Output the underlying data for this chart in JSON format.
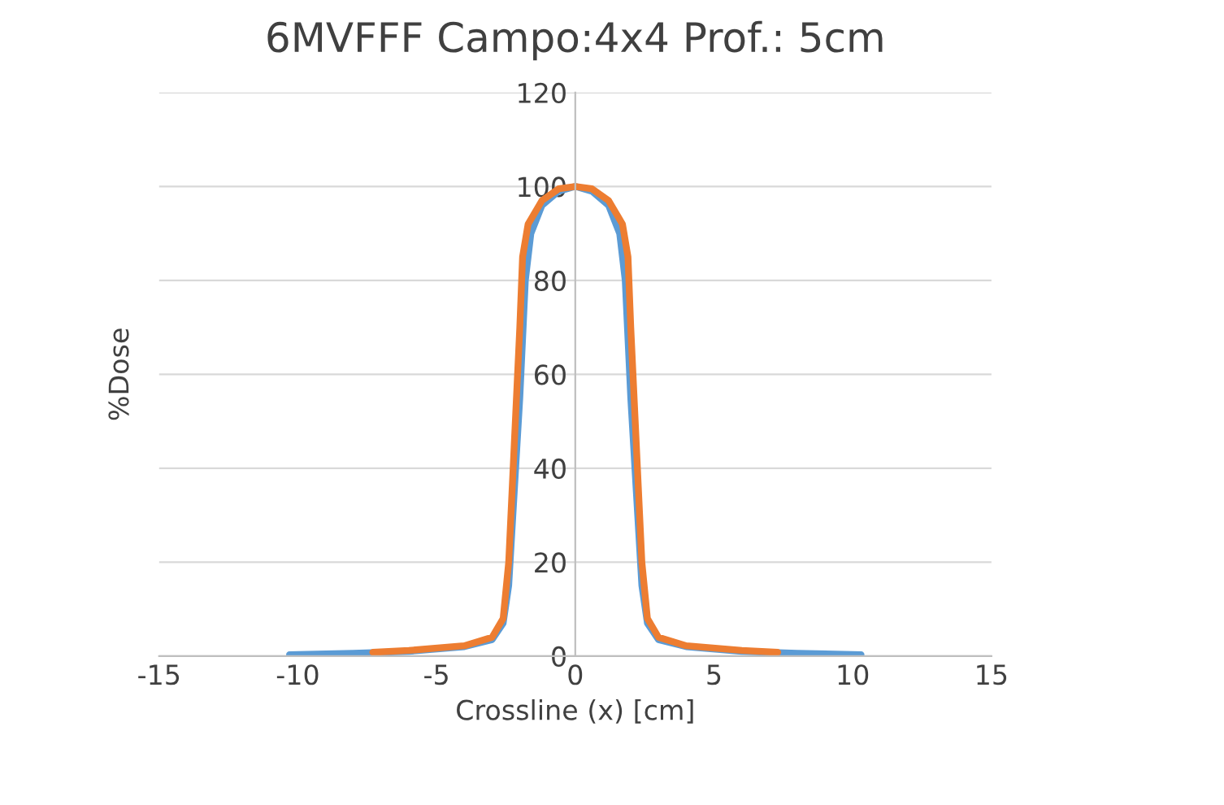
{
  "chart_data": {
    "type": "line",
    "title": "6MVFFF Campo:4x4 Prof.: 5cm",
    "xlabel": "Crossline (x) [cm]",
    "ylabel": "%Dose",
    "xlim": [
      -15,
      15
    ],
    "xticks": [
      -15,
      -10,
      -5,
      0,
      5,
      10,
      15
    ],
    "ylim": [
      0,
      120
    ],
    "yticks": [
      0,
      20,
      40,
      60,
      80,
      100,
      120
    ],
    "grid": "y",
    "series": [
      {
        "color": "#5b9bd5",
        "x": [
          -10.3,
          -8,
          -6,
          -4,
          -3,
          -2.6,
          -2.4,
          -2.2,
          -2.0,
          -1.8,
          -1.6,
          -1.2,
          -0.6,
          0,
          0.6,
          1.2,
          1.6,
          1.8,
          2.0,
          2.2,
          2.4,
          2.6,
          3,
          4,
          6,
          8,
          10.3
        ],
        "values": [
          0.3,
          0.6,
          1.0,
          2.0,
          3.5,
          7,
          15,
          35,
          55,
          80,
          90,
          96,
          99,
          100,
          99,
          96,
          90,
          80,
          55,
          35,
          15,
          7,
          3.5,
          2.0,
          1.0,
          0.6,
          0.3
        ]
      },
      {
        "color": "#ed7d31",
        "x": [
          -7.3,
          -6,
          -4,
          -3,
          -2.6,
          -2.4,
          -2.2,
          -2.0,
          -1.9,
          -1.7,
          -1.2,
          -0.6,
          0,
          0.6,
          1.2,
          1.7,
          1.9,
          2.0,
          2.2,
          2.4,
          2.6,
          3,
          4,
          6,
          7.3
        ],
        "values": [
          0.8,
          1.2,
          2.2,
          4,
          8,
          20,
          45,
          70,
          85,
          92,
          97,
          99.5,
          100,
          99.5,
          97,
          92,
          85,
          70,
          45,
          20,
          8,
          4,
          2.2,
          1.2,
          0.8
        ]
      }
    ]
  }
}
